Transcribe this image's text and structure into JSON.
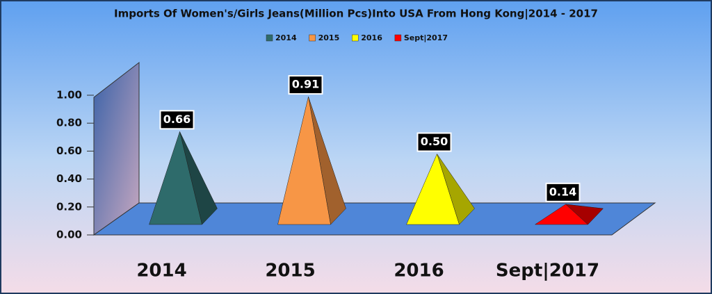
{
  "chart_data": {
    "type": "pyramid",
    "title": "Imports Of Women's/Girls Jeans(Million Pcs)Into USA From Hong Kong|2014 - 2017",
    "categories": [
      "2014",
      "2015",
      "2016",
      "Sept|2017"
    ],
    "values": [
      0.66,
      0.91,
      0.5,
      0.14
    ],
    "value_labels": [
      "0.66",
      "0.91",
      "0.50",
      "0.14"
    ],
    "colors": [
      "#2e6b6b",
      "#f79646",
      "#ffff00",
      "#ff0000"
    ],
    "ylim": [
      0,
      1
    ],
    "yticks": [
      {
        "value": 0,
        "label": "0.00"
      },
      {
        "value": 0.2,
        "label": "0.20"
      },
      {
        "value": 0.4,
        "label": "0.40"
      },
      {
        "value": 0.6,
        "label": "0.60"
      },
      {
        "value": 0.8,
        "label": "0.80"
      },
      {
        "value": 1,
        "label": "1.00"
      }
    ],
    "legend": "top"
  }
}
